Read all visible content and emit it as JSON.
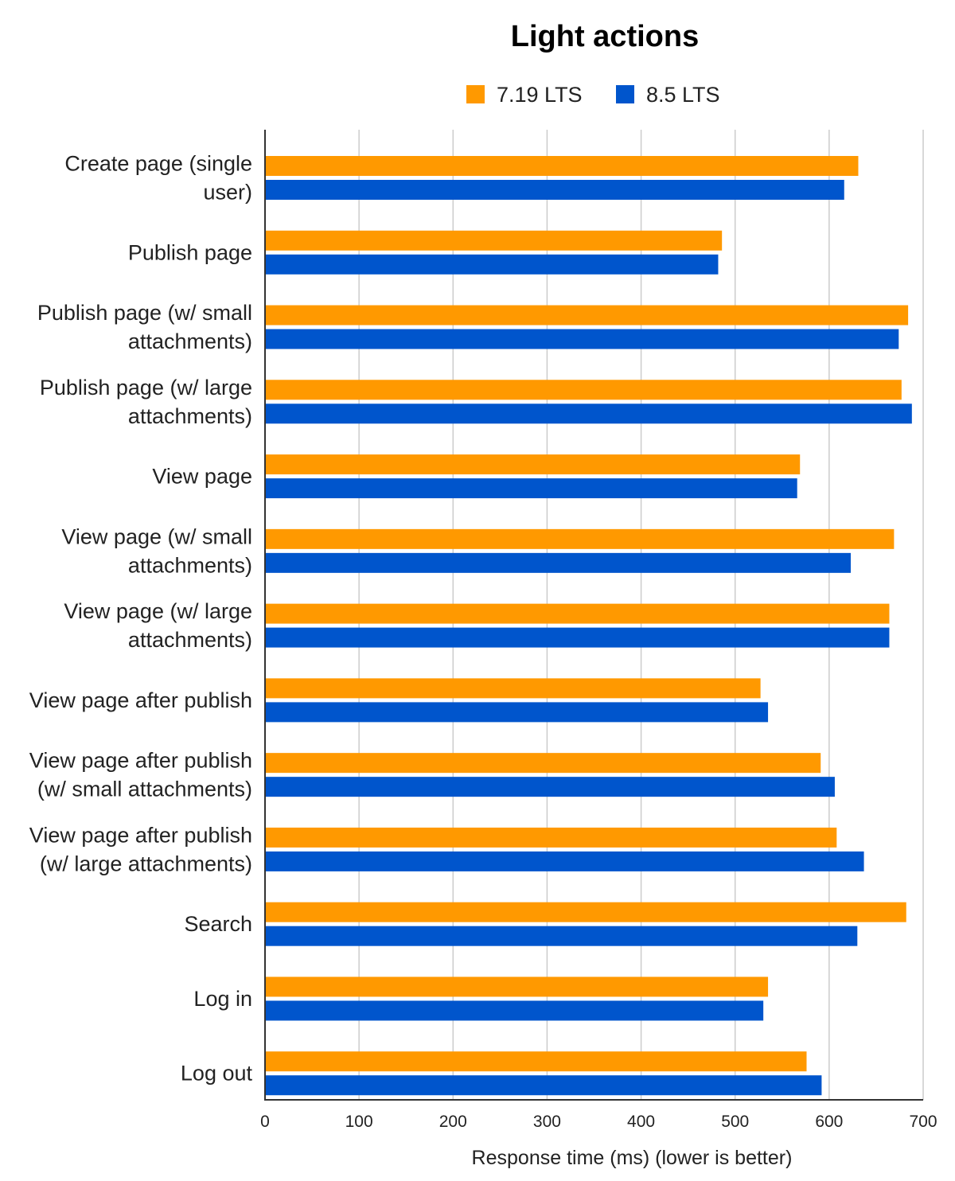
{
  "chart_data": {
    "type": "bar",
    "orientation": "horizontal",
    "title": "Light actions",
    "xlabel": "Response time (ms) (lower is better)",
    "ylabel": "",
    "xlim": [
      0,
      700
    ],
    "x_ticks": [
      "0",
      "100",
      "200",
      "300",
      "400",
      "500",
      "600",
      "700"
    ],
    "grid": true,
    "legend_position": "top",
    "categories": [
      [
        "Create page (single",
        "user)"
      ],
      [
        "Publish page"
      ],
      [
        "Publish page (w/ small",
        "attachments)"
      ],
      [
        "Publish page (w/ large",
        "attachments)"
      ],
      [
        "View page"
      ],
      [
        "View page (w/ small",
        "attachments)"
      ],
      [
        "View page (w/ large",
        "attachments)"
      ],
      [
        "View page after publish"
      ],
      [
        "View page after publish",
        "(w/ small attachments)"
      ],
      [
        "View page after publish",
        "(w/ large attachments)"
      ],
      [
        "Search"
      ],
      [
        "Log in"
      ],
      [
        "Log out"
      ]
    ],
    "series": [
      {
        "name": "7.19 LTS",
        "color": "#ff9900",
        "values": [
          631,
          486,
          684,
          677,
          569,
          669,
          664,
          527,
          591,
          608,
          682,
          535,
          576
        ]
      },
      {
        "name": "8.5 LTS",
        "color": "#0055cc",
        "values": [
          616,
          482,
          674,
          688,
          566,
          623,
          664,
          535,
          606,
          637,
          630,
          530,
          592
        ]
      }
    ]
  }
}
